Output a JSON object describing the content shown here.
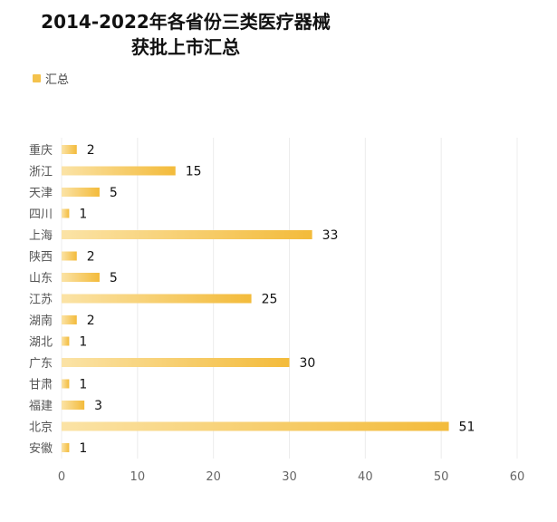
{
  "chart_data": {
    "type": "bar",
    "orientation": "horizontal",
    "title": [
      "2014-2022年各省份三类医疗器械",
      "获批上市汇总"
    ],
    "legend": {
      "position": "top-left",
      "entries": [
        "汇总"
      ]
    },
    "categories": [
      "重庆",
      "浙江",
      "天津",
      "四川",
      "上海",
      "陕西",
      "山东",
      "江苏",
      "湖南",
      "湖北",
      "广东",
      "甘肃",
      "福建",
      "北京",
      "安徽"
    ],
    "series": [
      {
        "name": "汇总",
        "values": [
          2,
          15,
          5,
          1,
          33,
          2,
          5,
          25,
          2,
          1,
          30,
          1,
          3,
          51,
          1
        ]
      }
    ],
    "xlim": [
      0,
      60
    ],
    "xticks": [
      0,
      10,
      20,
      30,
      40,
      50,
      60
    ],
    "grid": true,
    "colors": {
      "bar_start": "#fbe3a6",
      "bar_end": "#f3bb3b",
      "legend": "#f4c24c"
    }
  }
}
